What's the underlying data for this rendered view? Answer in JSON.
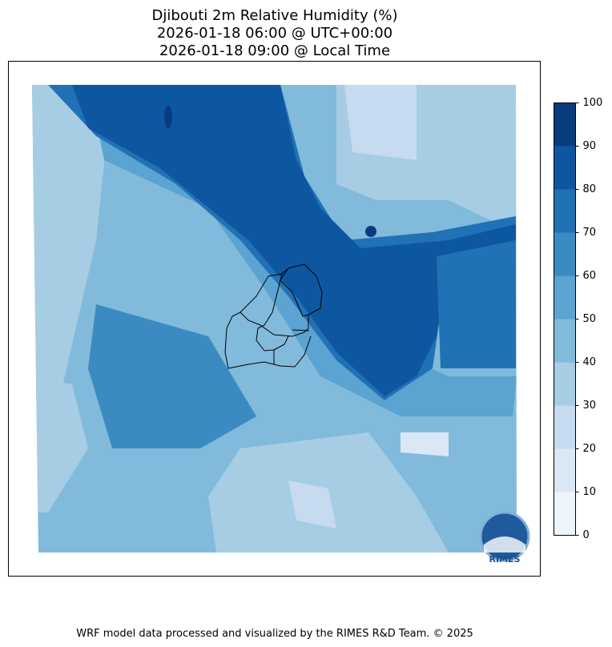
{
  "title": [
    "Djibouti 2m Relative Humidity (%)",
    "2026-01-18 06:00 @ UTC+00:00",
    "2026-01-18 09:00 @ Local Time"
  ],
  "colorbar": {
    "ticks": [
      0,
      10,
      20,
      30,
      40,
      50,
      60,
      70,
      80,
      90,
      100
    ],
    "colors": [
      "#eef5fc",
      "#dae8f6",
      "#c6dbef",
      "#a6cde3",
      "#82badb",
      "#5ba3d0",
      "#3b8bc2",
      "#2171b5",
      "#0d57a1",
      "#083c7d"
    ]
  },
  "logo": "RIMES",
  "footer": "WRF model data processed and visualized by the RIMES R&D Team. © 2025"
}
